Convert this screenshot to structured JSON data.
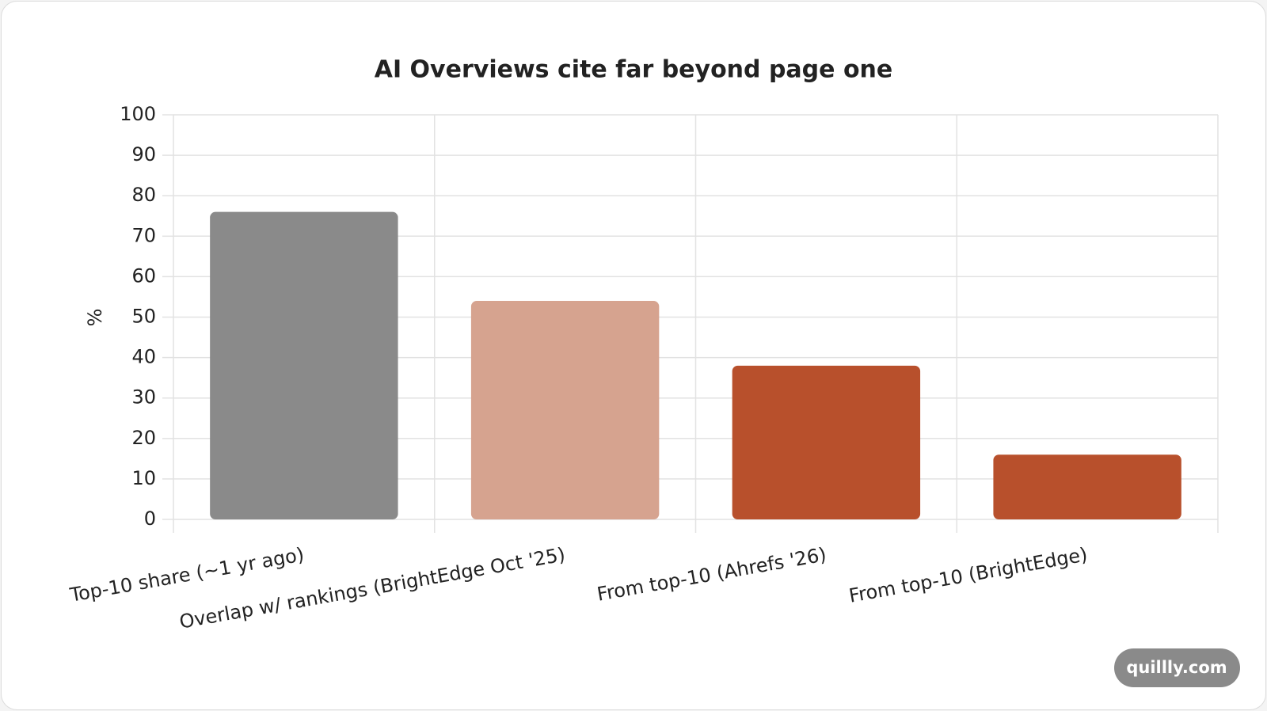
{
  "chart_data": {
    "type": "bar",
    "title": "AI Overviews cite far beyond page one",
    "categories": [
      "Top-10 share (~1 yr ago)",
      "Overlap w/ rankings (BrightEdge Oct '25)",
      "From top-10 (Ahrefs '26)",
      "From top-10 (BrightEdge)"
    ],
    "values": [
      76,
      54,
      38,
      16
    ],
    "colors": [
      "#8a8a8a",
      "#d6a38f",
      "#b8502c",
      "#b8502c"
    ],
    "y_label": "%",
    "ylim": [
      0,
      100
    ],
    "yticks": [
      0,
      10,
      20,
      30,
      40,
      50,
      60,
      70,
      80,
      90,
      100
    ],
    "grid": true
  },
  "watermark": "quillly.com"
}
